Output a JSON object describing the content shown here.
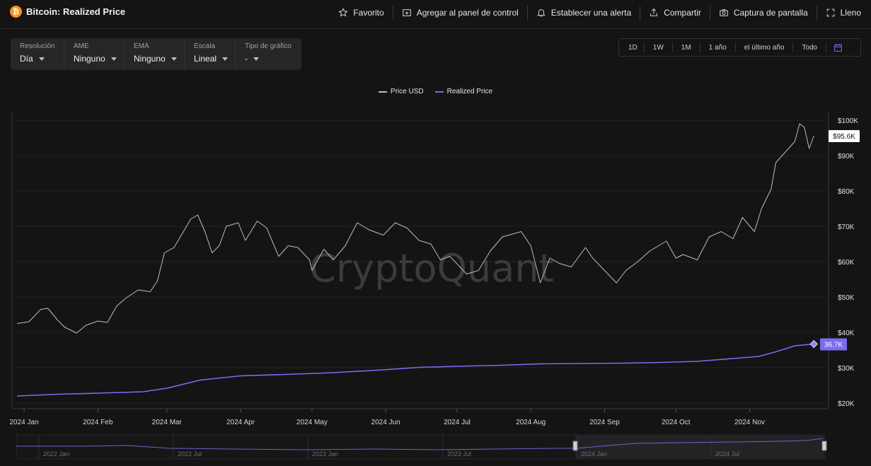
{
  "header": {
    "logo_glyph": "₿",
    "title": "Bitcoin: Realized Price",
    "actions": [
      {
        "label": "Favorito",
        "icon": "star-icon"
      },
      {
        "label": "Agregar al panel de control",
        "icon": "dashboard-add-icon"
      },
      {
        "label": "Establecer una alerta",
        "icon": "bell-icon"
      },
      {
        "label": "Compartir",
        "icon": "share-icon"
      },
      {
        "label": "Captura de pantalla",
        "icon": "camera-icon"
      },
      {
        "label": "Lleno",
        "icon": "fullscreen-icon"
      }
    ]
  },
  "controls": [
    {
      "label": "Resolución",
      "value": "Día"
    },
    {
      "label": "AME",
      "value": "Ninguno"
    },
    {
      "label": "EMA",
      "value": "Ninguno"
    },
    {
      "label": "Escala",
      "value": "Lineal"
    },
    {
      "label": "Tipo de gráfico",
      "value": "-"
    }
  ],
  "ranges": [
    "1D",
    "1W",
    "1M",
    "1 año",
    "el último año",
    "Todo"
  ],
  "legend": [
    {
      "name": "Price USD",
      "color": "#bdbdbd"
    },
    {
      "name": "Realized Price",
      "color": "#7b6cf0"
    }
  ],
  "watermark": "CryptoQuant",
  "chart_data": {
    "type": "line",
    "x_tick_labels": [
      "2024 Jan",
      "2024 Feb",
      "2024 Mar",
      "2024 Apr",
      "2024 May",
      "2024 Jun",
      "2024 Jul",
      "2024 Aug",
      "2024 Sep",
      "2024 Oct",
      "2024 Nov"
    ],
    "y_tick_labels": [
      "$20K",
      "$30K",
      "$40K",
      "$50K",
      "$60K",
      "$70K",
      "$80K",
      "$90K",
      "$100K"
    ],
    "ylim": [
      20000,
      100000
    ],
    "grid": true,
    "legend_position": "top-center",
    "last_value_labels": {
      "price": "$95.6K",
      "realized": "36.7K"
    },
    "series": [
      {
        "name": "Price USD",
        "color": "#bdbdbd",
        "points": [
          [
            "2023-12-29",
            42500
          ],
          [
            "2024-01-03",
            43000
          ],
          [
            "2024-01-08",
            46500
          ],
          [
            "2024-01-11",
            46800
          ],
          [
            "2024-01-15",
            43500
          ],
          [
            "2024-01-18",
            41500
          ],
          [
            "2024-01-23",
            39800
          ],
          [
            "2024-01-27",
            42000
          ],
          [
            "2024-02-01",
            43200
          ],
          [
            "2024-02-05",
            42800
          ],
          [
            "2024-02-09",
            47500
          ],
          [
            "2024-02-13",
            49800
          ],
          [
            "2024-02-18",
            52000
          ],
          [
            "2024-02-23",
            51500
          ],
          [
            "2024-02-26",
            54500
          ],
          [
            "2024-02-29",
            62500
          ],
          [
            "2024-03-04",
            64000
          ],
          [
            "2024-03-08",
            68500
          ],
          [
            "2024-03-11",
            72000
          ],
          [
            "2024-03-14",
            73200
          ],
          [
            "2024-03-17",
            68500
          ],
          [
            "2024-03-20",
            62500
          ],
          [
            "2024-03-23",
            64500
          ],
          [
            "2024-03-26",
            70000
          ],
          [
            "2024-03-31",
            71000
          ],
          [
            "2024-04-03",
            66000
          ],
          [
            "2024-04-08",
            71500
          ],
          [
            "2024-04-12",
            69500
          ],
          [
            "2024-04-17",
            61500
          ],
          [
            "2024-04-21",
            64500
          ],
          [
            "2024-04-25",
            64000
          ],
          [
            "2024-04-30",
            60500
          ],
          [
            "2024-05-01",
            57500
          ],
          [
            "2024-05-06",
            63500
          ],
          [
            "2024-05-10",
            60500
          ],
          [
            "2024-05-15",
            64500
          ],
          [
            "2024-05-20",
            71000
          ],
          [
            "2024-05-25",
            69000
          ],
          [
            "2024-05-31",
            67500
          ],
          [
            "2024-06-05",
            71000
          ],
          [
            "2024-06-10",
            69500
          ],
          [
            "2024-06-15",
            66000
          ],
          [
            "2024-06-20",
            65000
          ],
          [
            "2024-06-24",
            60500
          ],
          [
            "2024-06-28",
            61500
          ],
          [
            "2024-07-05",
            56500
          ],
          [
            "2024-07-10",
            57500
          ],
          [
            "2024-07-15",
            63000
          ],
          [
            "2024-07-20",
            67000
          ],
          [
            "2024-07-28",
            68500
          ],
          [
            "2024-08-01",
            64500
          ],
          [
            "2024-08-05",
            54000
          ],
          [
            "2024-08-09",
            61000
          ],
          [
            "2024-08-13",
            59500
          ],
          [
            "2024-08-18",
            58500
          ],
          [
            "2024-08-24",
            64000
          ],
          [
            "2024-08-27",
            61000
          ],
          [
            "2024-09-01",
            57500
          ],
          [
            "2024-09-06",
            54000
          ],
          [
            "2024-09-10",
            57500
          ],
          [
            "2024-09-15",
            60000
          ],
          [
            "2024-09-20",
            63000
          ],
          [
            "2024-09-27",
            65800
          ],
          [
            "2024-10-01",
            61000
          ],
          [
            "2024-10-04",
            62000
          ],
          [
            "2024-10-10",
            60500
          ],
          [
            "2024-10-15",
            67000
          ],
          [
            "2024-10-20",
            68500
          ],
          [
            "2024-10-25",
            66500
          ],
          [
            "2024-10-29",
            72500
          ],
          [
            "2024-11-03",
            68500
          ],
          [
            "2024-11-06",
            75000
          ],
          [
            "2024-11-10",
            80500
          ],
          [
            "2024-11-12",
            88000
          ],
          [
            "2024-11-16",
            91000
          ],
          [
            "2024-11-20",
            94000
          ],
          [
            "2024-11-22",
            99000
          ],
          [
            "2024-11-24",
            98000
          ],
          [
            "2024-11-26",
            92000
          ],
          [
            "2024-11-28",
            95600
          ]
        ]
      },
      {
        "name": "Realized Price",
        "color": "#7b6cf0",
        "points": [
          [
            "2023-12-29",
            22000
          ],
          [
            "2024-01-15",
            22500
          ],
          [
            "2024-02-01",
            22800
          ],
          [
            "2024-02-20",
            23200
          ],
          [
            "2024-03-01",
            24200
          ],
          [
            "2024-03-15",
            26500
          ],
          [
            "2024-04-01",
            27700
          ],
          [
            "2024-04-20",
            28100
          ],
          [
            "2024-05-10",
            28600
          ],
          [
            "2024-05-31",
            29400
          ],
          [
            "2024-06-15",
            30100
          ],
          [
            "2024-07-01",
            30400
          ],
          [
            "2024-07-20",
            30700
          ],
          [
            "2024-08-05",
            31100
          ],
          [
            "2024-08-25",
            31200
          ],
          [
            "2024-09-10",
            31300
          ],
          [
            "2024-09-25",
            31500
          ],
          [
            "2024-10-10",
            31800
          ],
          [
            "2024-10-25",
            32600
          ],
          [
            "2024-11-05",
            33200
          ],
          [
            "2024-11-12",
            34500
          ],
          [
            "2024-11-20",
            36200
          ],
          [
            "2024-11-28",
            36700
          ]
        ]
      }
    ],
    "navigator": {
      "x_tick_labels": [
        "2022 Jan",
        "2022 Jul",
        "2023 Jan",
        "2023 Jul",
        "2024 Jan",
        "2024 Jul"
      ]
    }
  }
}
